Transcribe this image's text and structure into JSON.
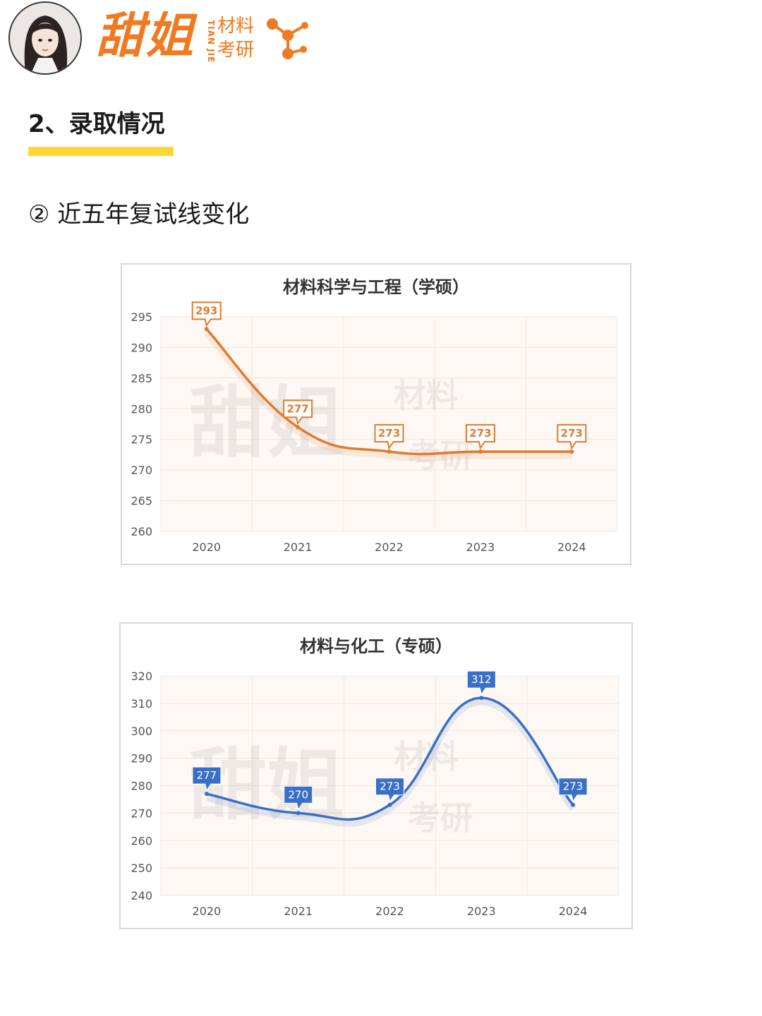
{
  "brand": {
    "name": "甜姐",
    "pinyin": "TIAN JIE",
    "sub_line1": "材料",
    "sub_line2": "考研",
    "color": "#f07a22"
  },
  "section": {
    "title": "2、录取情况",
    "subtitle": "② 近五年复试线变化"
  },
  "chart_data": [
    {
      "type": "line",
      "title": "材料科学与工程（学硕）",
      "categories": [
        "2020",
        "2021",
        "2022",
        "2023",
        "2024"
      ],
      "series": [
        {
          "values": [
            293,
            277,
            273,
            273,
            273
          ],
          "color": "#e07b2e"
        }
      ],
      "data_labels": [
        "293",
        "277",
        "273",
        "273",
        "273"
      ],
      "ylim": [
        260,
        295
      ],
      "yticks": [
        "260",
        "265",
        "270",
        "275",
        "280",
        "285",
        "290",
        "295"
      ],
      "label_style": "outlined",
      "watermark": "甜姐 TIAN 材料 考研",
      "grid": true,
      "legend": "none"
    },
    {
      "type": "line",
      "title": "材料与化工（专硕）",
      "categories": [
        "2020",
        "2021",
        "2022",
        "2023",
        "2024"
      ],
      "series": [
        {
          "values": [
            277,
            270,
            273,
            312,
            273
          ],
          "color": "#3a6fc8"
        }
      ],
      "data_labels": [
        "277",
        "270",
        "273",
        "312",
        "273"
      ],
      "ylim": [
        240,
        320
      ],
      "yticks": [
        "240",
        "250",
        "260",
        "270",
        "280",
        "290",
        "300",
        "310",
        "320"
      ],
      "label_style": "filled",
      "watermark": "甜姐 TIAN 材料 考研",
      "grid": true,
      "legend": "none"
    }
  ]
}
